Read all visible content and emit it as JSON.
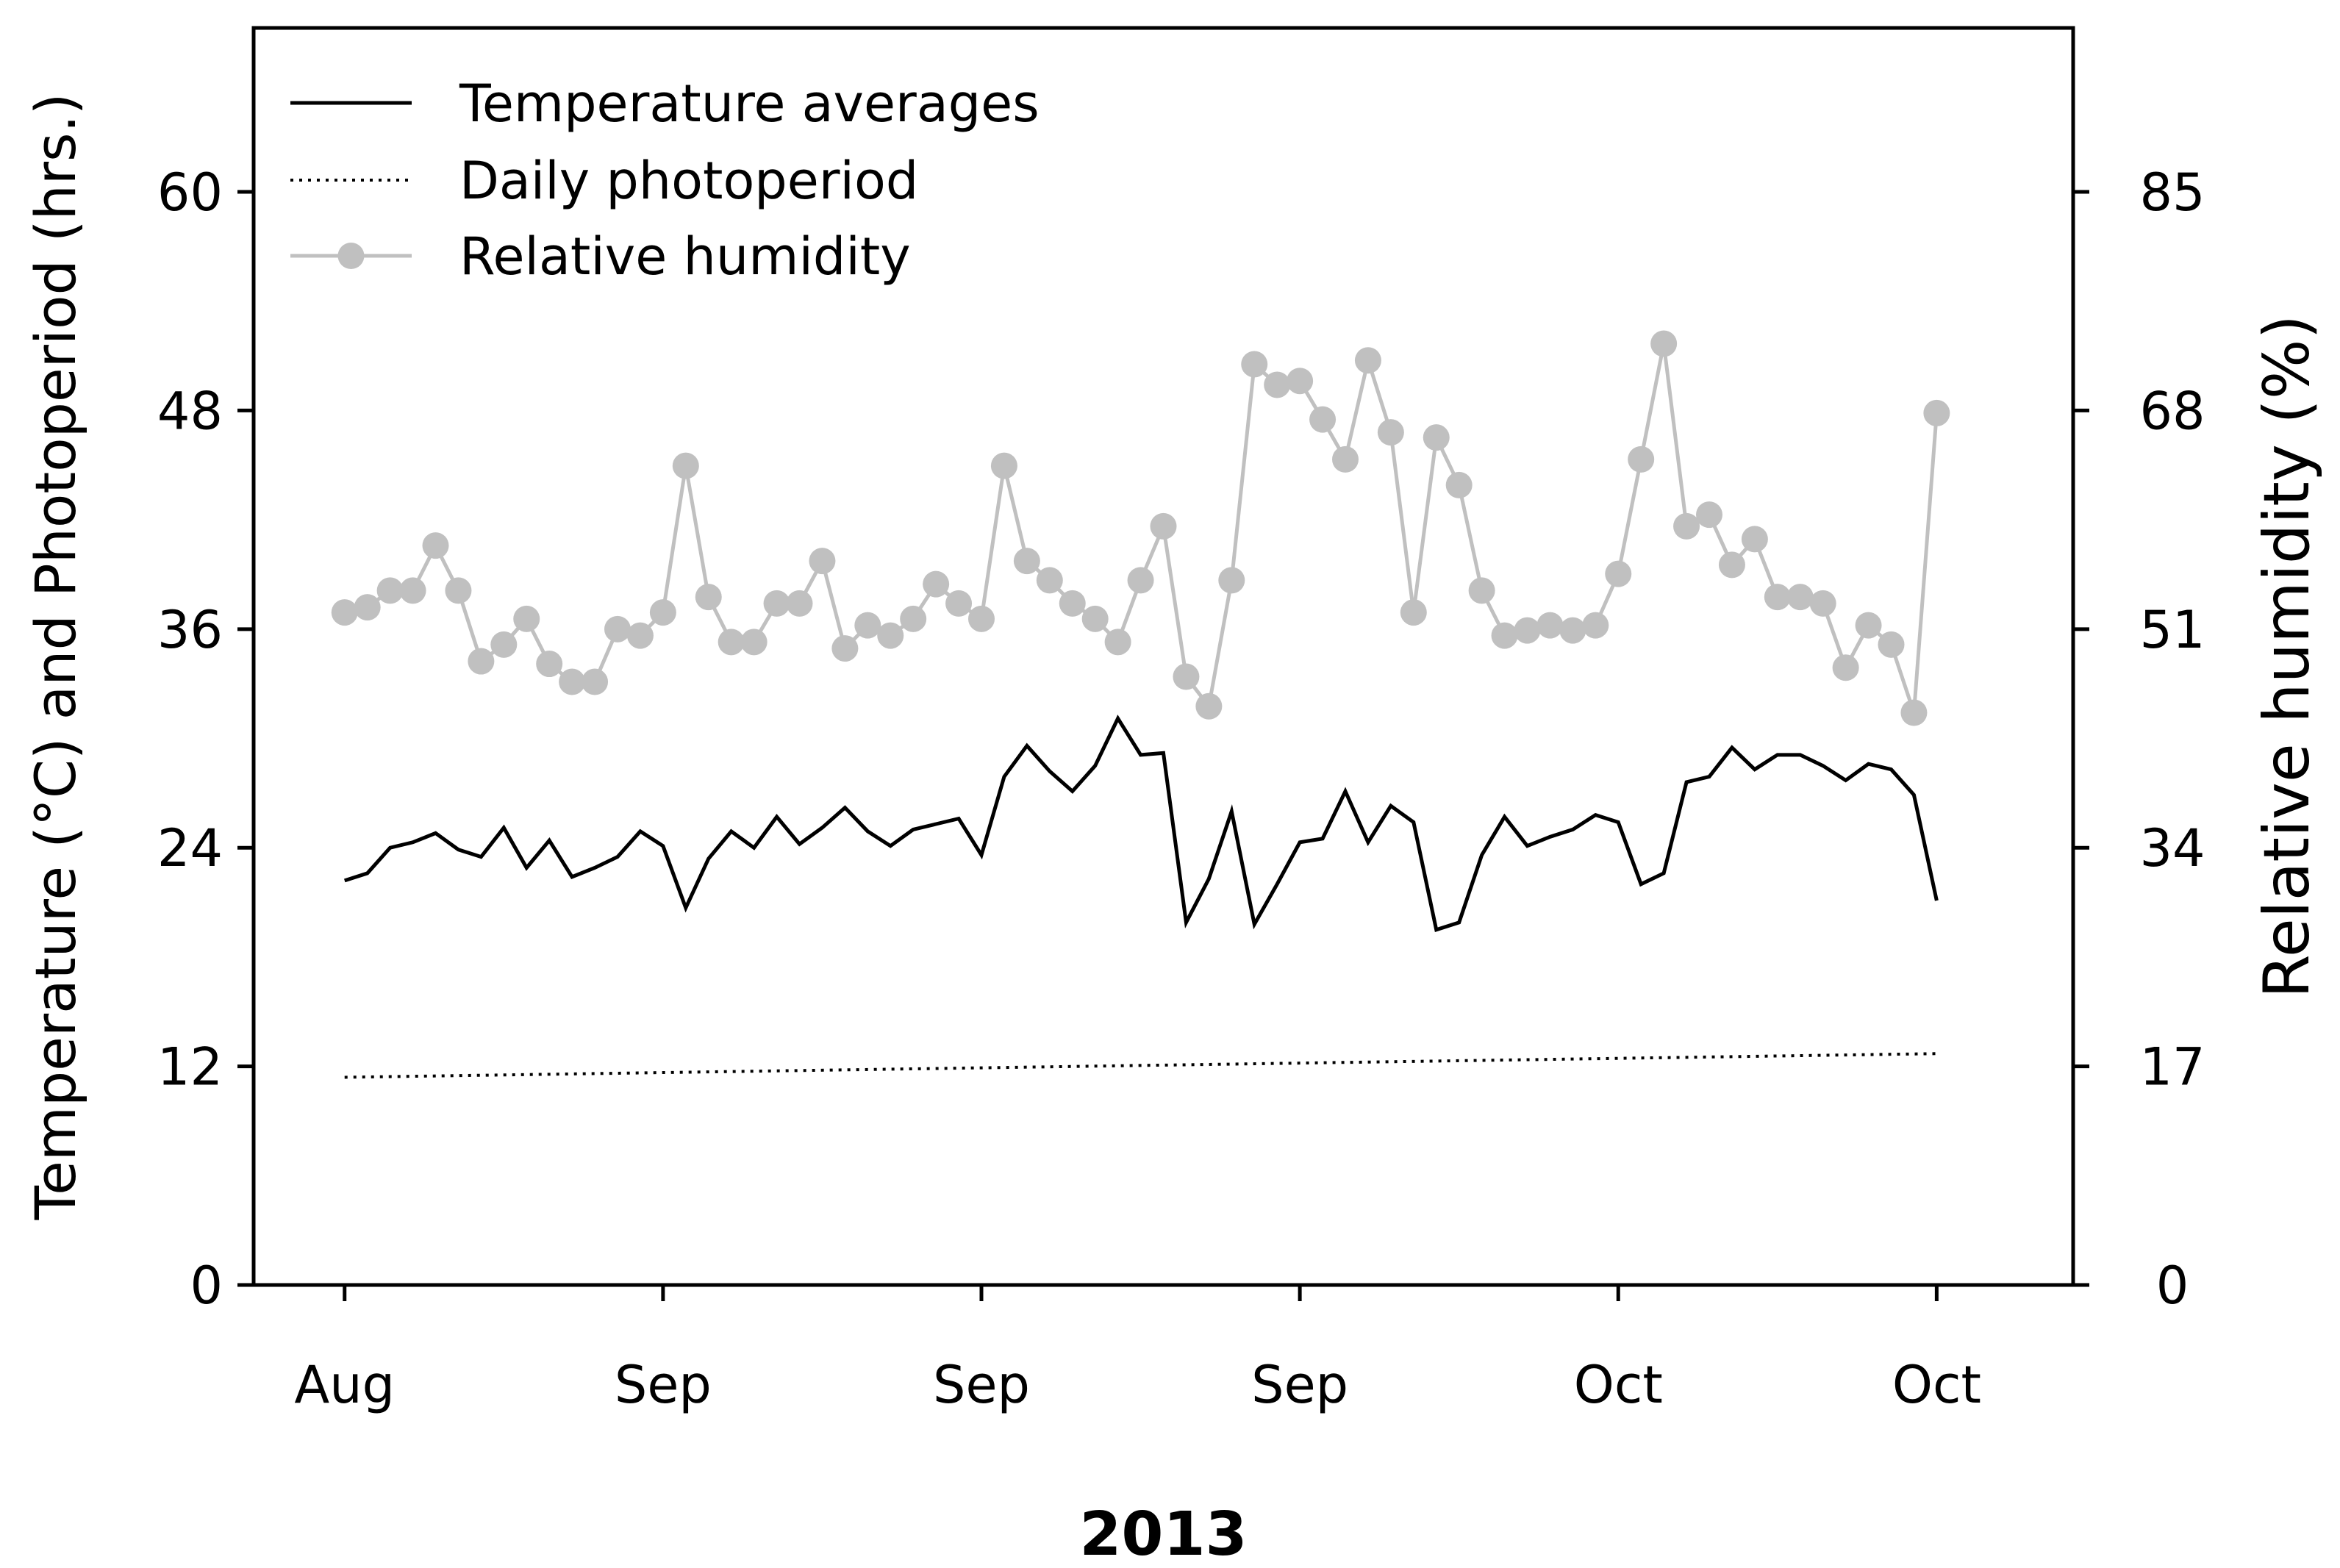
{
  "chart_data": {
    "type": "line",
    "title": "",
    "xlabel": "2013",
    "ylabel_left": "Temperature (°C) and Photoperiod (hrs.)",
    "ylabel_right": "Relative humidity (%)",
    "x_tick_labels": [
      "Aug",
      "Sep",
      "Sep",
      "Sep",
      "Oct",
      "Oct"
    ],
    "x_tick_positions": [
      0,
      14,
      28,
      42,
      56,
      70
    ],
    "x_range": [
      -4,
      76
    ],
    "y_left_range": [
      0,
      69
    ],
    "y_left_ticks": [
      0,
      12,
      24,
      36,
      48,
      60
    ],
    "y_right_range": [
      0,
      97.75
    ],
    "y_right_ticks": [
      0,
      17,
      34,
      51,
      68,
      85
    ],
    "grid": false,
    "legend_position": "top-left",
    "series": [
      {
        "name": "Temperature averages",
        "axis": "left",
        "style": "solid",
        "color": "#000000",
        "values": [
          22.2,
          22.6,
          24.0,
          24.3,
          24.8,
          23.9,
          23.5,
          25.1,
          22.9,
          24.4,
          22.4,
          22.9,
          23.5,
          24.9,
          24.1,
          20.7,
          23.4,
          24.9,
          24.0,
          25.7,
          24.2,
          25.1,
          26.2,
          24.9,
          24.1,
          25.0,
          25.3,
          25.6,
          23.6,
          27.9,
          29.6,
          28.2,
          27.1,
          28.5,
          31.1,
          29.1,
          29.2,
          19.9,
          22.3,
          26.0,
          19.8,
          22.0,
          24.3,
          24.5,
          27.1,
          24.3,
          26.3,
          25.4,
          19.5,
          19.9,
          23.6,
          25.7,
          24.1,
          24.6,
          25.0,
          25.8,
          25.4,
          22.0,
          22.6,
          27.6,
          27.9,
          29.5,
          28.3,
          29.1,
          29.1,
          28.5,
          27.7,
          28.6,
          28.3,
          26.9,
          21.1
        ]
      },
      {
        "name": "Daily photoperiod",
        "axis": "left",
        "style": "dotted",
        "color": "#000000",
        "start": 11.4,
        "end": 12.7
      },
      {
        "name": "Relative humidity",
        "axis": "right",
        "style": "solid-marker",
        "color": "#c0c0c0",
        "values": [
          52.3,
          52.7,
          54.0,
          54.0,
          57.5,
          54.0,
          48.5,
          49.8,
          51.8,
          48.3,
          46.9,
          46.9,
          51.0,
          50.5,
          52.3,
          63.7,
          53.5,
          50.0,
          50.0,
          53.0,
          53.0,
          56.3,
          49.5,
          51.3,
          50.5,
          51.8,
          54.5,
          53.0,
          51.8,
          63.7,
          56.3,
          54.8,
          53.0,
          51.8,
          50.0,
          54.8,
          59.0,
          47.3,
          45.0,
          54.8,
          71.6,
          70.0,
          70.3,
          67.3,
          64.2,
          71.9,
          66.3,
          52.3,
          65.9,
          62.2,
          54.0,
          50.5,
          50.9,
          51.3,
          50.9,
          51.3,
          55.3,
          64.2,
          73.2,
          59.0,
          59.9,
          56.0,
          58.0,
          53.5,
          53.5,
          53.0,
          48.0,
          51.3,
          49.8,
          44.5,
          67.8
        ]
      }
    ]
  }
}
